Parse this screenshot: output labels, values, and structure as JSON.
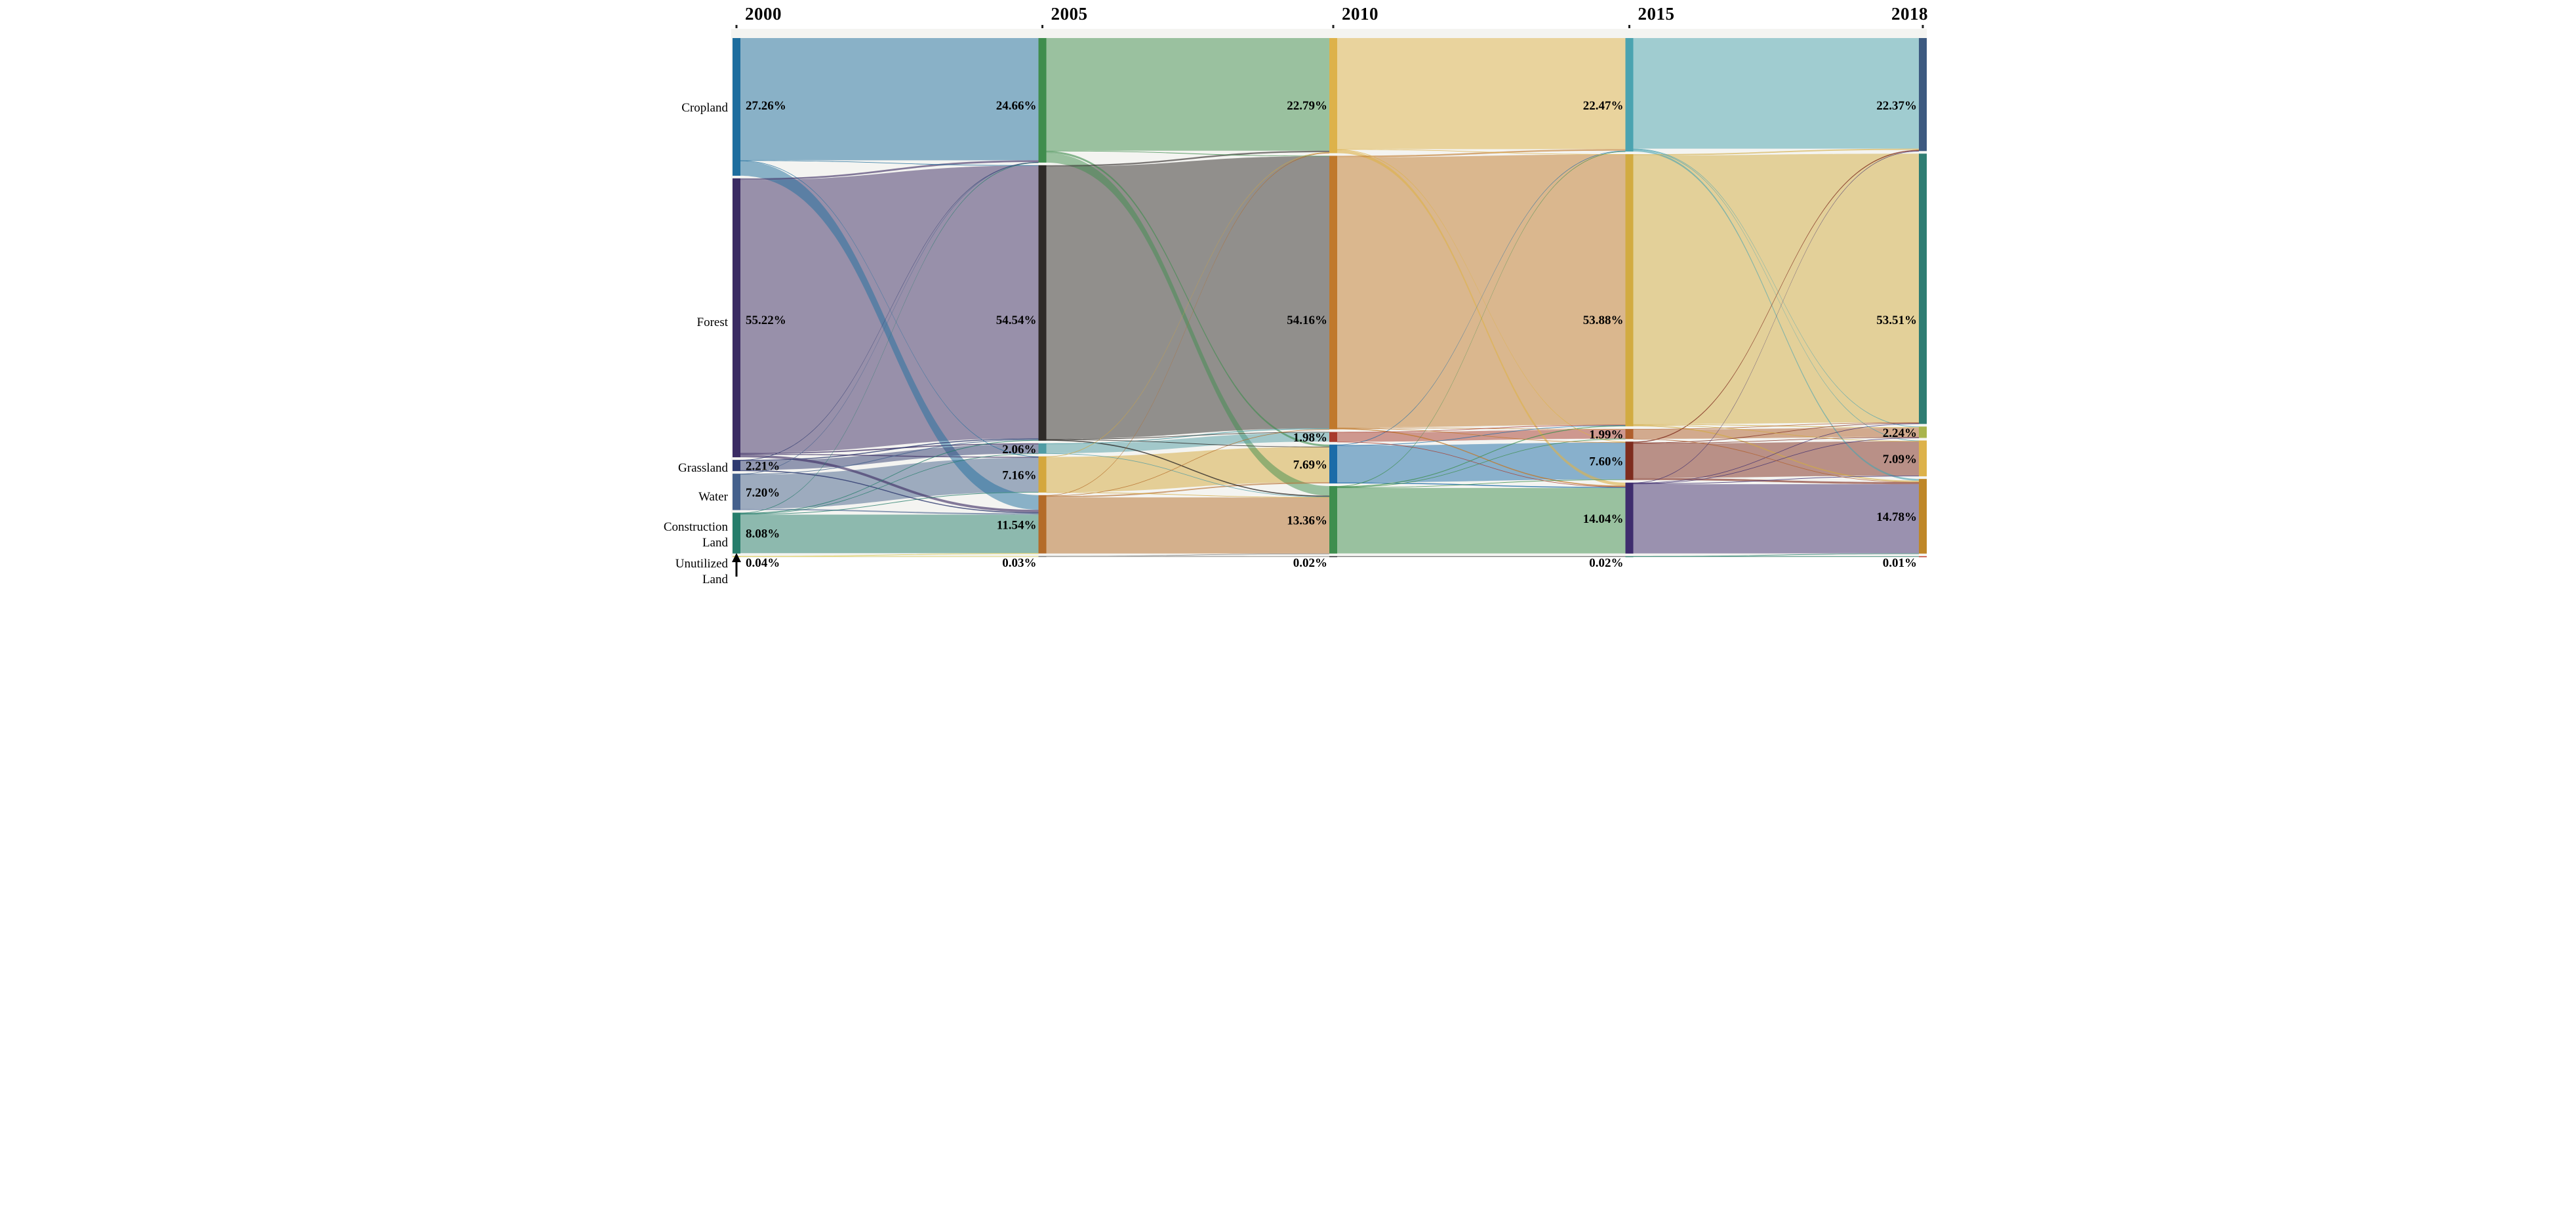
{
  "figure": {
    "plot_background": "#f4f4f1",
    "label_color": "#000000",
    "tick_color": "#222222"
  },
  "chart_data": {
    "type": "sankey",
    "title": "",
    "unit": "%",
    "x_axis_years": [
      "2000",
      "2005",
      "2010",
      "2015",
      "2018"
    ],
    "categories": [
      "Cropland",
      "Forest",
      "Grassland",
      "Water",
      "Construction Land",
      "Unutilized Land"
    ],
    "category_label_lines": [
      [
        "Cropland"
      ],
      [
        "Forest"
      ],
      [
        "Grassland"
      ],
      [
        "Water"
      ],
      [
        "Construction",
        "Land"
      ],
      [
        "Unutilized",
        "Land"
      ]
    ],
    "node_values": {
      "2000": [
        27.26,
        55.22,
        2.21,
        7.2,
        8.08,
        0.04
      ],
      "2005": [
        24.66,
        54.54,
        2.06,
        7.16,
        11.54,
        0.03
      ],
      "2010": [
        22.79,
        54.16,
        1.98,
        7.69,
        13.36,
        0.02
      ],
      "2015": [
        22.47,
        53.88,
        1.99,
        7.6,
        14.04,
        0.02
      ],
      "2018": [
        22.37,
        53.51,
        2.24,
        7.09,
        14.78,
        0.01
      ]
    },
    "node_value_labels": {
      "2000": [
        "27.26%",
        "55.22%",
        "2.21%",
        "7.20%",
        "8.08%",
        "0.04%"
      ],
      "2005": [
        "24.66%",
        "54.54%",
        "2.06%",
        "7.16%",
        "11.54%",
        "0.03%"
      ],
      "2010": [
        "22.79%",
        "54.16%",
        "1.98%",
        "7.69%",
        "13.36%",
        "0.02%"
      ],
      "2015": [
        "22.47%",
        "53.88%",
        "1.99%",
        "7.60%",
        "14.04%",
        "0.02%"
      ],
      "2018": [
        "22.37%",
        "53.51%",
        "2.24%",
        "7.09%",
        "14.78%",
        "0.01%"
      ]
    },
    "node_colors": {
      "2000": [
        "#1e6e9e",
        "#3b2c63",
        "#2e3a6f",
        "#45618c",
        "#267d6b",
        "#d9c84a"
      ],
      "2005": [
        "#3f8d4d",
        "#2e2a28",
        "#4f9ba3",
        "#d4a73c",
        "#b46b28",
        "#777777"
      ],
      "2010": [
        "#ddb24a",
        "#c0792c",
        "#a83b2d",
        "#1c6ca8",
        "#3e8e4e",
        "#26262c"
      ],
      "2015": [
        "#4ba3b0",
        "#d2ab42",
        "#b05f2c",
        "#7e2c1e",
        "#3f2d6e",
        "#267d6b"
      ],
      "2018": [
        "#3d5a80",
        "#2f7d72",
        "#a9b44c",
        "#ddb24a",
        "#bf8728",
        "#c0392b"
      ]
    },
    "link_format": "[source_category_index, target_category_index, value_percent_estimated_from_band_widths]",
    "links": {
      "2000-2005": [
        [
          0,
          0,
          24.2
        ],
        [
          0,
          1,
          0.06
        ],
        [
          0,
          3,
          0.1
        ],
        [
          0,
          4,
          2.9
        ],
        [
          1,
          0,
          0.35
        ],
        [
          1,
          1,
          54.0
        ],
        [
          1,
          2,
          0.2
        ],
        [
          1,
          3,
          0.17
        ],
        [
          1,
          4,
          0.5
        ],
        [
          2,
          0,
          0.01
        ],
        [
          2,
          1,
          0.2
        ],
        [
          2,
          2,
          1.8
        ],
        [
          2,
          4,
          0.2
        ],
        [
          3,
          0,
          0.05
        ],
        [
          3,
          1,
          0.14
        ],
        [
          3,
          3,
          6.76
        ],
        [
          3,
          4,
          0.25
        ],
        [
          4,
          0,
          0.05
        ],
        [
          4,
          1,
          0.14
        ],
        [
          4,
          2,
          0.06
        ],
        [
          4,
          3,
          0.13
        ],
        [
          4,
          4,
          7.64
        ],
        [
          5,
          4,
          0.01
        ],
        [
          5,
          5,
          0.03
        ]
      ],
      "2005-2010": [
        [
          0,
          0,
          22.3
        ],
        [
          0,
          1,
          0.06
        ],
        [
          0,
          3,
          0.4
        ],
        [
          0,
          4,
          1.9
        ],
        [
          1,
          0,
          0.3
        ],
        [
          1,
          1,
          53.9
        ],
        [
          1,
          2,
          0.1
        ],
        [
          1,
          3,
          0.04
        ],
        [
          1,
          4,
          0.2
        ],
        [
          2,
          1,
          0.16
        ],
        [
          2,
          2,
          1.8
        ],
        [
          2,
          4,
          0.1
        ],
        [
          3,
          0,
          0.1
        ],
        [
          3,
          3,
          7.0
        ],
        [
          3,
          4,
          0.06
        ],
        [
          4,
          0,
          0.09
        ],
        [
          4,
          1,
          0.1
        ],
        [
          4,
          3,
          0.25
        ],
        [
          4,
          4,
          11.1
        ],
        [
          5,
          4,
          0.01
        ],
        [
          5,
          5,
          0.02
        ]
      ],
      "2010-2015": [
        [
          0,
          0,
          22.0
        ],
        [
          0,
          1,
          0.06
        ],
        [
          0,
          3,
          0.13
        ],
        [
          0,
          4,
          0.6
        ],
        [
          1,
          0,
          0.3
        ],
        [
          1,
          1,
          53.5
        ],
        [
          1,
          2,
          0.1
        ],
        [
          1,
          3,
          0.06
        ],
        [
          1,
          4,
          0.2
        ],
        [
          2,
          1,
          0.1
        ],
        [
          2,
          2,
          1.82
        ],
        [
          2,
          4,
          0.06
        ],
        [
          3,
          0,
          0.12
        ],
        [
          3,
          1,
          0.07
        ],
        [
          3,
          3,
          7.3
        ],
        [
          3,
          4,
          0.2
        ],
        [
          4,
          0,
          0.05
        ],
        [
          4,
          1,
          0.15
        ],
        [
          4,
          2,
          0.07
        ],
        [
          4,
          3,
          0.11
        ],
        [
          4,
          4,
          12.95
        ],
        [
          5,
          5,
          0.02
        ]
      ],
      "2015-2018": [
        [
          0,
          0,
          21.9
        ],
        [
          0,
          2,
          0.12
        ],
        [
          0,
          3,
          0.1
        ],
        [
          0,
          4,
          0.35
        ],
        [
          1,
          0,
          0.25
        ],
        [
          1,
          1,
          53.2
        ],
        [
          1,
          2,
          0.12
        ],
        [
          1,
          3,
          0.06
        ],
        [
          1,
          4,
          0.25
        ],
        [
          2,
          1,
          0.1
        ],
        [
          2,
          2,
          1.85
        ],
        [
          2,
          4,
          0.04
        ],
        [
          3,
          0,
          0.2
        ],
        [
          3,
          1,
          0.1
        ],
        [
          3,
          2,
          0.1
        ],
        [
          3,
          3,
          6.8
        ],
        [
          3,
          4,
          0.4
        ],
        [
          4,
          0,
          0.02
        ],
        [
          4,
          1,
          0.11
        ],
        [
          4,
          2,
          0.05
        ],
        [
          4,
          3,
          0.13
        ],
        [
          4,
          4,
          13.7
        ],
        [
          5,
          4,
          0.01
        ],
        [
          5,
          5,
          0.01
        ]
      ]
    },
    "legend": "none",
    "grid": "off",
    "annotations": {
      "arrow_marker": "black up-arrow pointing to the Unutilized Land node in the 2000 column"
    }
  }
}
